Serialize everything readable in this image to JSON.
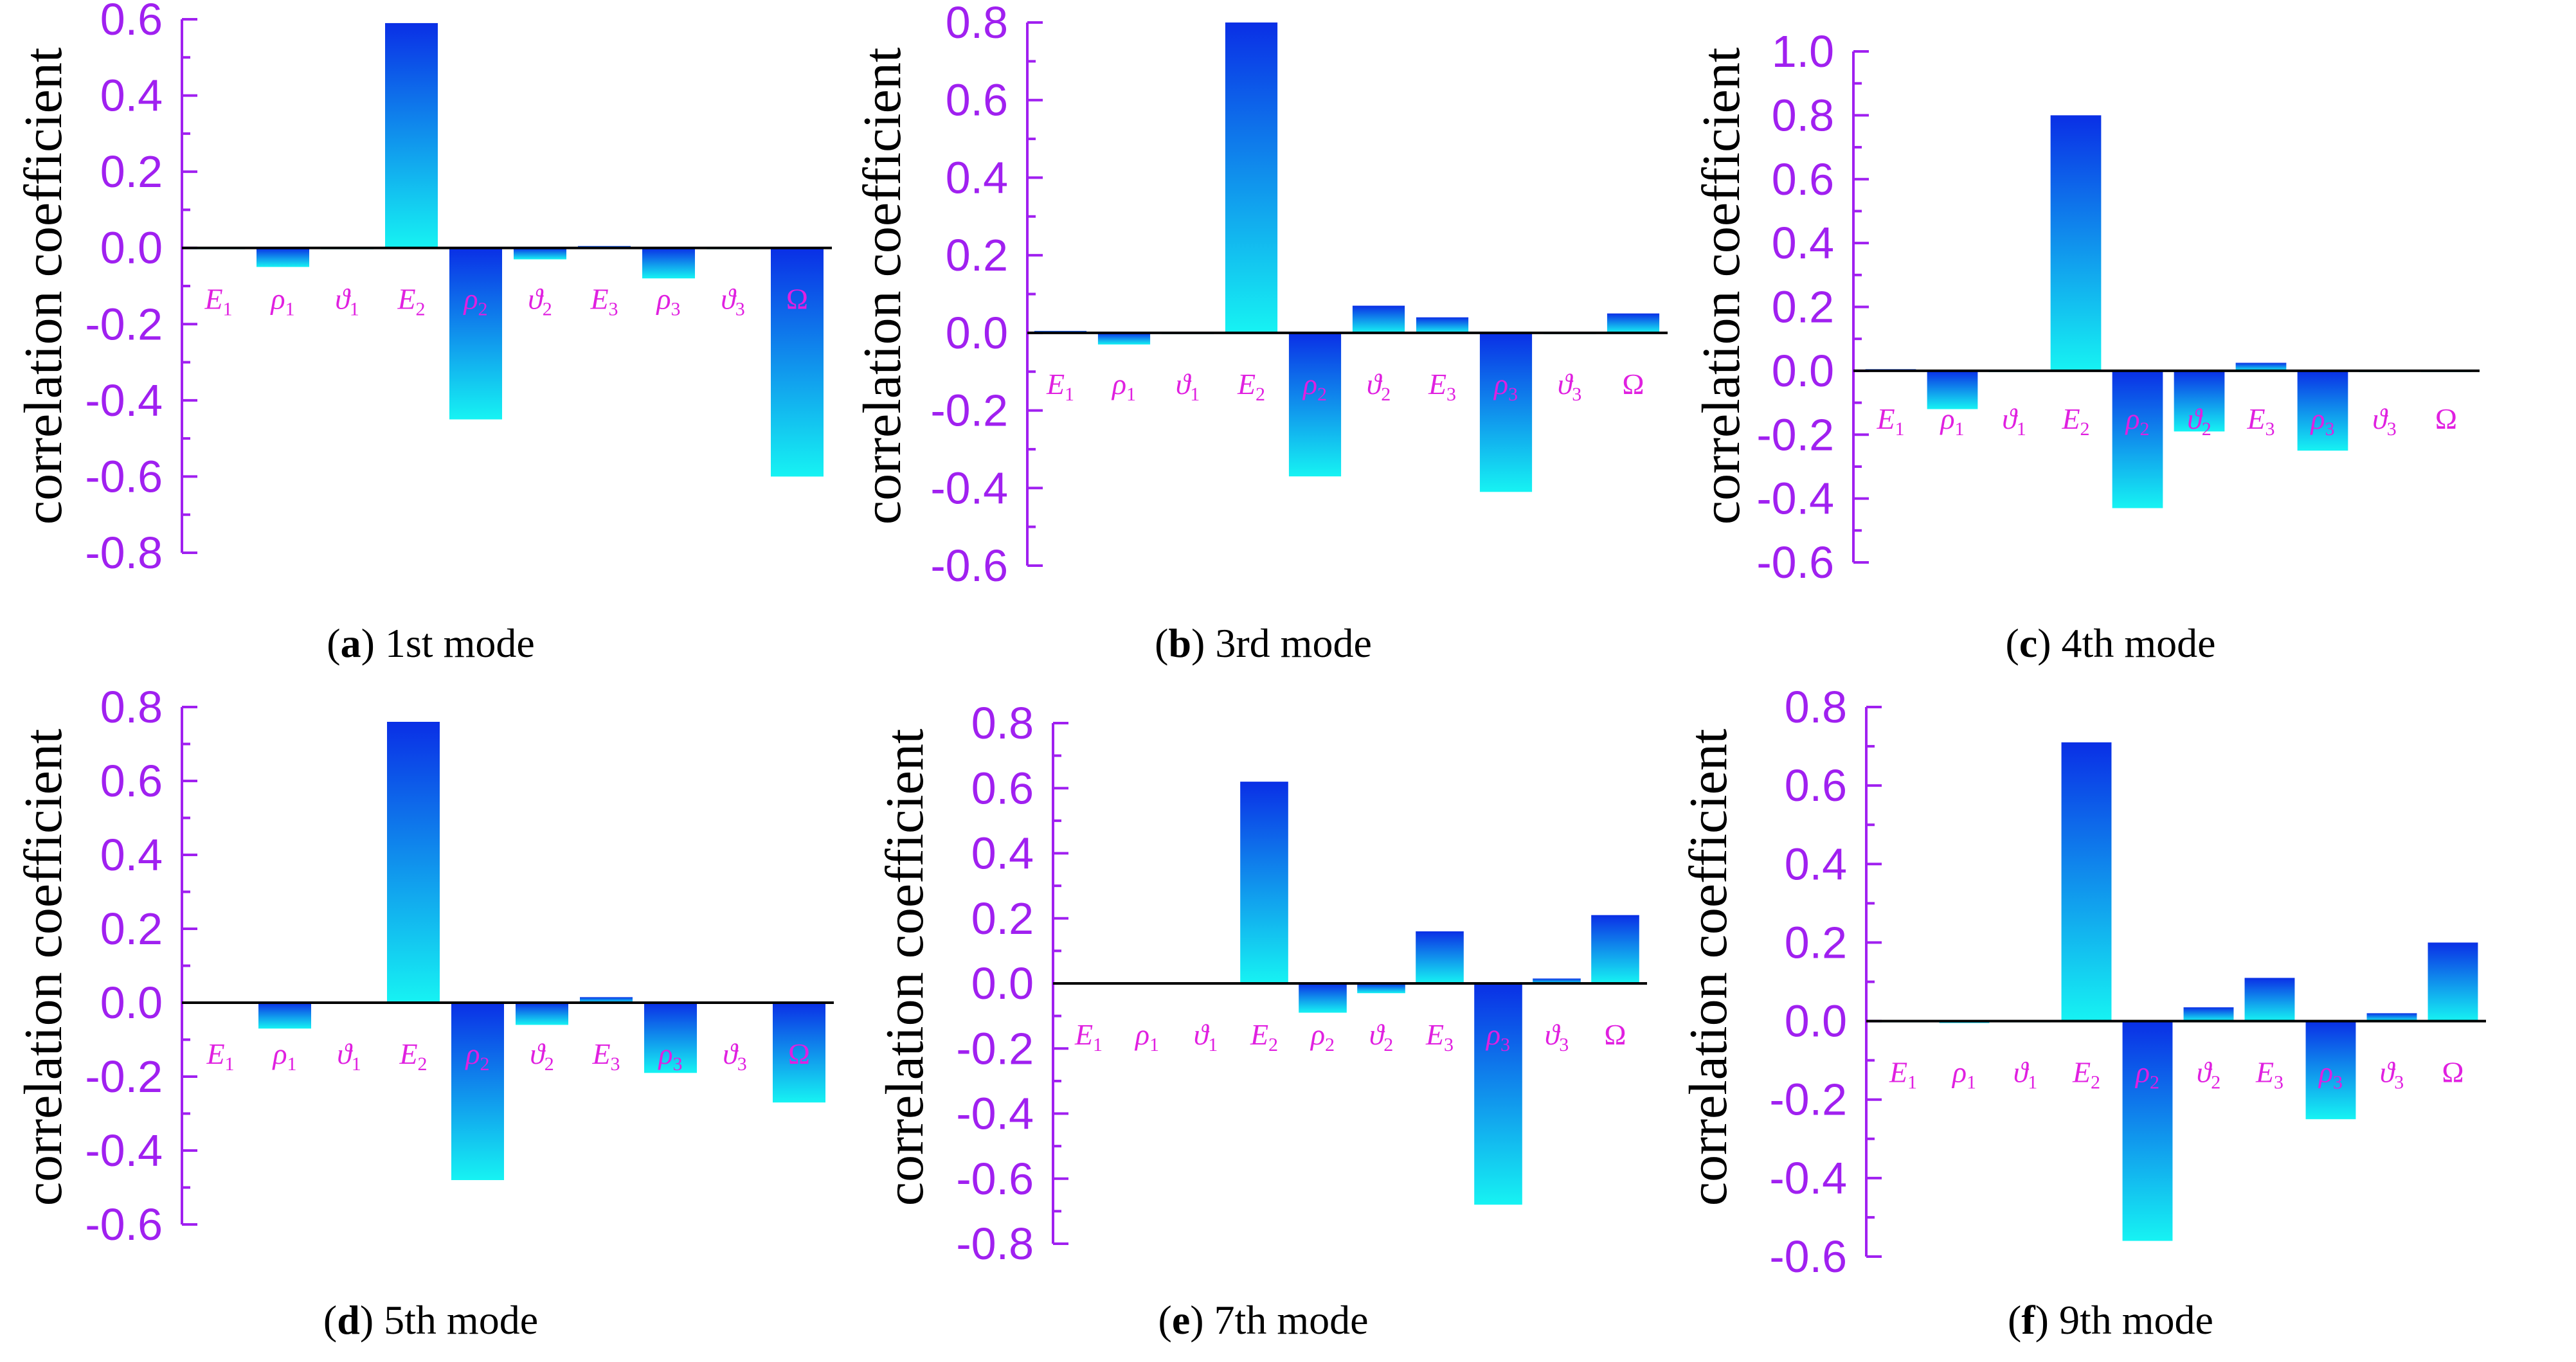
{
  "colors": {
    "axis": "#a020f0",
    "tick_label": "#a020f0",
    "category_label": "#e020e0",
    "bar_dark": "#0a2fe6",
    "bar_light": "#16f3f3",
    "zero_line": "#000000"
  },
  "chart_data": [
    {
      "type": "bar",
      "panel": "a",
      "caption_letter": "a",
      "caption_text": " 1st mode",
      "ylabel": "correlation coefficient",
      "ylim": [
        -0.8,
        0.6
      ],
      "yticks": [
        0.6,
        0.4,
        0.2,
        0.0,
        -0.2,
        -0.4,
        -0.6,
        -0.8
      ],
      "ytick_labels": [
        "0.6",
        "0.4",
        "0.2",
        "0.0",
        "-0.2",
        "-0.4",
        "-0.6",
        "-0.8"
      ],
      "categories": [
        {
          "base": "E",
          "sub": "1"
        },
        {
          "base": "ρ",
          "sub": "1"
        },
        {
          "base": "ϑ",
          "sub": "1"
        },
        {
          "base": "E",
          "sub": "2"
        },
        {
          "base": "ρ",
          "sub": "2"
        },
        {
          "base": "ϑ",
          "sub": "2"
        },
        {
          "base": "E",
          "sub": "3"
        },
        {
          "base": "ρ",
          "sub": "3"
        },
        {
          "base": "ϑ",
          "sub": "3"
        },
        {
          "base": "Ω",
          "sub": ""
        }
      ],
      "values": [
        0.0,
        -0.05,
        0.0,
        0.59,
        -0.45,
        -0.03,
        0.005,
        -0.08,
        0.0,
        -0.6
      ]
    },
    {
      "type": "bar",
      "panel": "b",
      "caption_letter": "b",
      "caption_text": " 3rd mode",
      "ylabel": "correlation coefficient",
      "ylim": [
        -0.6,
        0.8
      ],
      "yticks": [
        0.8,
        0.6,
        0.4,
        0.2,
        0.0,
        -0.2,
        -0.4,
        -0.6
      ],
      "ytick_labels": [
        "0.8",
        "0.6",
        "0.4",
        "0.2",
        "0.0",
        "-0.2",
        "-0.4",
        "-0.6"
      ],
      "categories": [
        {
          "base": "E",
          "sub": "1"
        },
        {
          "base": "ρ",
          "sub": "1"
        },
        {
          "base": "ϑ",
          "sub": "1"
        },
        {
          "base": "E",
          "sub": "2"
        },
        {
          "base": "ρ",
          "sub": "2"
        },
        {
          "base": "ϑ",
          "sub": "2"
        },
        {
          "base": "E",
          "sub": "3"
        },
        {
          "base": "ρ",
          "sub": "3"
        },
        {
          "base": "ϑ",
          "sub": "3"
        },
        {
          "base": "Ω",
          "sub": ""
        }
      ],
      "values": [
        0.005,
        -0.03,
        0.0,
        0.8,
        -0.37,
        0.07,
        0.04,
        -0.41,
        0.0,
        0.05
      ]
    },
    {
      "type": "bar",
      "panel": "c",
      "caption_letter": "c",
      "caption_text": " 4th mode",
      "ylabel": "correlation coefficient",
      "ylim": [
        -0.6,
        1.0
      ],
      "yticks": [
        1.0,
        0.8,
        0.6,
        0.4,
        0.2,
        0.0,
        -0.2,
        -0.4,
        -0.6
      ],
      "ytick_labels": [
        "1.0",
        "0.8",
        "0.6",
        "0.4",
        "0.2",
        "0.0",
        "-0.2",
        "-0.4",
        "-0.6"
      ],
      "categories": [
        {
          "base": "E",
          "sub": "1"
        },
        {
          "base": "ρ",
          "sub": "1"
        },
        {
          "base": "ϑ",
          "sub": "1"
        },
        {
          "base": "E",
          "sub": "2"
        },
        {
          "base": "ρ",
          "sub": "2"
        },
        {
          "base": "ϑ",
          "sub": "2"
        },
        {
          "base": "E",
          "sub": "3"
        },
        {
          "base": "ρ",
          "sub": "3"
        },
        {
          "base": "ϑ",
          "sub": "3"
        },
        {
          "base": "Ω",
          "sub": ""
        }
      ],
      "values": [
        0.005,
        -0.12,
        0.0,
        0.8,
        -0.43,
        -0.19,
        0.025,
        -0.25,
        0.0,
        0.0
      ]
    },
    {
      "type": "bar",
      "panel": "d",
      "caption_letter": "d",
      "caption_text": " 5th mode",
      "ylabel": "correlation coefficient",
      "ylim": [
        -0.6,
        0.8
      ],
      "yticks": [
        0.8,
        0.6,
        0.4,
        0.2,
        0.0,
        -0.2,
        -0.4,
        -0.6
      ],
      "ytick_labels": [
        "0.8",
        "0.6",
        "0.4",
        "0.2",
        "0.0",
        "-0.2",
        "-0.4",
        "-0.6"
      ],
      "categories": [
        {
          "base": "E",
          "sub": "1"
        },
        {
          "base": "ρ",
          "sub": "1"
        },
        {
          "base": "ϑ",
          "sub": "1"
        },
        {
          "base": "E",
          "sub": "2"
        },
        {
          "base": "ρ",
          "sub": "2"
        },
        {
          "base": "ϑ",
          "sub": "2"
        },
        {
          "base": "E",
          "sub": "3"
        },
        {
          "base": "ρ",
          "sub": "3"
        },
        {
          "base": "ϑ",
          "sub": "3"
        },
        {
          "base": "Ω",
          "sub": ""
        }
      ],
      "values": [
        0.0,
        -0.07,
        0.0,
        0.76,
        -0.48,
        -0.06,
        0.015,
        -0.19,
        0.0,
        -0.27
      ]
    },
    {
      "type": "bar",
      "panel": "e",
      "caption_letter": "e",
      "caption_text": " 7th mode",
      "ylabel": "correlation coefficient",
      "ylim": [
        -0.8,
        0.8
      ],
      "yticks": [
        0.8,
        0.6,
        0.4,
        0.2,
        0.0,
        -0.2,
        -0.4,
        -0.6,
        -0.8
      ],
      "ytick_labels": [
        "0.8",
        "0.6",
        "0.4",
        "0.2",
        "0.0",
        "-0.2",
        "-0.4",
        "-0.6",
        "-0.8"
      ],
      "categories": [
        {
          "base": "E",
          "sub": "1"
        },
        {
          "base": "ρ",
          "sub": "1"
        },
        {
          "base": "ϑ",
          "sub": "1"
        },
        {
          "base": "E",
          "sub": "2"
        },
        {
          "base": "ρ",
          "sub": "2"
        },
        {
          "base": "ϑ",
          "sub": "2"
        },
        {
          "base": "E",
          "sub": "3"
        },
        {
          "base": "ρ",
          "sub": "3"
        },
        {
          "base": "ϑ",
          "sub": "3"
        },
        {
          "base": "Ω",
          "sub": ""
        }
      ],
      "values": [
        0.0,
        0.0,
        0.0,
        0.62,
        -0.09,
        -0.03,
        0.16,
        -0.68,
        0.015,
        0.21
      ]
    },
    {
      "type": "bar",
      "panel": "f",
      "caption_letter": "f",
      "caption_text": " 9th mode",
      "ylabel": "correlation coefficient",
      "ylim": [
        -0.6,
        0.8
      ],
      "yticks": [
        0.8,
        0.6,
        0.4,
        0.2,
        0.0,
        -0.2,
        -0.4,
        -0.6
      ],
      "ytick_labels": [
        "0.8",
        "0.6",
        "0.4",
        "0.2",
        "0.0",
        "-0.2",
        "-0.4",
        "-0.6"
      ],
      "categories": [
        {
          "base": "E",
          "sub": "1"
        },
        {
          "base": "ρ",
          "sub": "1"
        },
        {
          "base": "ϑ",
          "sub": "1"
        },
        {
          "base": "E",
          "sub": "2"
        },
        {
          "base": "ρ",
          "sub": "2"
        },
        {
          "base": "ϑ",
          "sub": "2"
        },
        {
          "base": "E",
          "sub": "3"
        },
        {
          "base": "ρ",
          "sub": "3"
        },
        {
          "base": "ϑ",
          "sub": "3"
        },
        {
          "base": "Ω",
          "sub": ""
        }
      ],
      "values": [
        0.0,
        -0.005,
        0.0,
        0.71,
        -0.56,
        0.035,
        0.11,
        -0.25,
        0.02,
        0.2
      ]
    }
  ]
}
